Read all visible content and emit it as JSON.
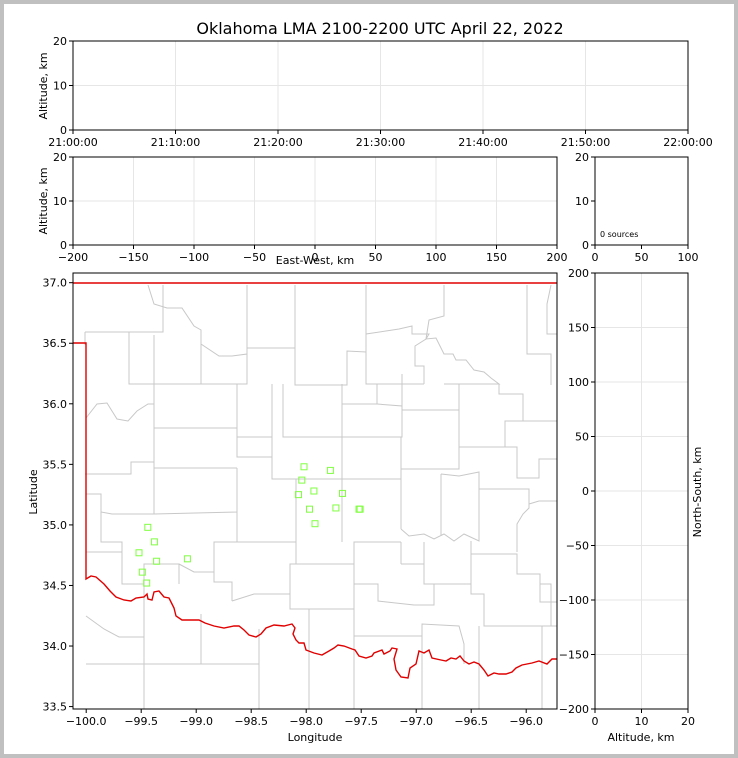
{
  "title": "Oklahoma LMA 2100-2200 UTC April 22, 2022",
  "colors": {
    "state_border": "#e00000",
    "county": "#c8c8c8",
    "source": "#80ff40",
    "grid": "#e6e6e6"
  },
  "chart_data": [
    {
      "id": "time_altitude",
      "type": "scatter",
      "ylabel": "Altitude, km",
      "xlim": [
        "21:00:00",
        "22:00:00"
      ],
      "ylim": [
        0,
        20
      ],
      "xticks": [
        "21:00:00",
        "21:10:00",
        "21:20:00",
        "21:30:00",
        "21:40:00",
        "21:50:00",
        "22:00:00"
      ],
      "yticks": [
        0,
        10,
        20
      ],
      "grid": true,
      "points": []
    },
    {
      "id": "ew_altitude",
      "type": "scatter",
      "xlabel": "East-West, km",
      "ylabel": "Altitude, km",
      "xlim": [
        -200,
        200
      ],
      "ylim": [
        0,
        20
      ],
      "xticks": [
        -200,
        -150,
        -100,
        -50,
        0,
        50,
        100,
        150,
        200
      ],
      "yticks": [
        0,
        10,
        20
      ],
      "grid": true,
      "points": []
    },
    {
      "id": "histogram",
      "type": "bar",
      "xlim": [
        0,
        100
      ],
      "ylim": [
        0,
        20
      ],
      "xticks": [
        0,
        50,
        100
      ],
      "yticks": [
        0,
        10,
        20
      ],
      "annotation": "0 sources",
      "values": []
    },
    {
      "id": "plan_view",
      "type": "scatter",
      "xlabel": "Longitude",
      "ylabel": "Latitude",
      "xlim": [
        -100.12,
        -95.72
      ],
      "ylim": [
        33.48,
        37.08
      ],
      "xticks": [
        -100.0,
        -99.5,
        -99.0,
        -98.5,
        -98.0,
        -97.5,
        -97.0,
        -96.5,
        -96.0
      ],
      "yticks": [
        33.5,
        34.0,
        34.5,
        35.0,
        35.5,
        36.0,
        36.5,
        37.0
      ],
      "points": [
        {
          "lon": -98.02,
          "lat": 35.48
        },
        {
          "lon": -97.78,
          "lat": 35.45
        },
        {
          "lon": -98.04,
          "lat": 35.37
        },
        {
          "lon": -97.93,
          "lat": 35.28
        },
        {
          "lon": -98.07,
          "lat": 35.25
        },
        {
          "lon": -97.67,
          "lat": 35.26
        },
        {
          "lon": -97.97,
          "lat": 35.13
        },
        {
          "lon": -97.73,
          "lat": 35.14
        },
        {
          "lon": -97.52,
          "lat": 35.13
        },
        {
          "lon": -97.51,
          "lat": 35.13
        },
        {
          "lon": -97.92,
          "lat": 35.01
        },
        {
          "lon": -99.44,
          "lat": 34.98
        },
        {
          "lon": -99.38,
          "lat": 34.86
        },
        {
          "lon": -99.52,
          "lat": 34.77
        },
        {
          "lon": -99.08,
          "lat": 34.72
        },
        {
          "lon": -99.36,
          "lat": 34.7
        },
        {
          "lon": -99.49,
          "lat": 34.61
        },
        {
          "lon": -99.45,
          "lat": 34.52
        }
      ]
    },
    {
      "id": "alt_ns",
      "type": "scatter",
      "xlabel": "Altitude, km",
      "ylabel": "North-South, km",
      "xlim": [
        0,
        20
      ],
      "ylim": [
        -200,
        200
      ],
      "xticks": [
        0,
        10,
        20
      ],
      "yticks": [
        -200,
        -150,
        -100,
        -50,
        0,
        50,
        100,
        150,
        200
      ],
      "grid": true,
      "points": []
    }
  ]
}
